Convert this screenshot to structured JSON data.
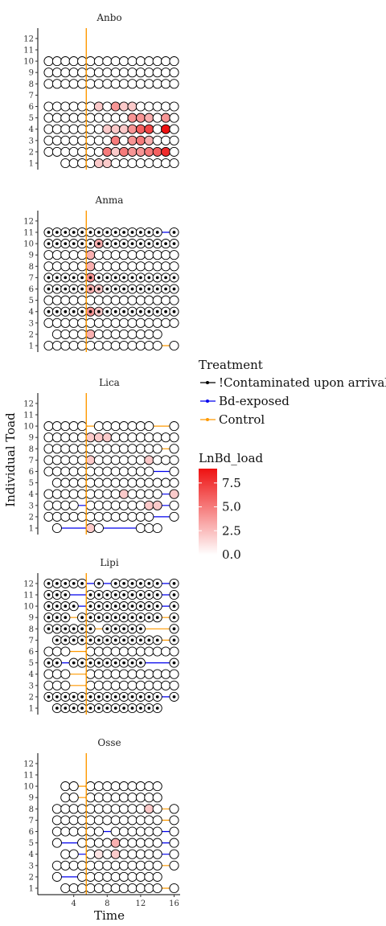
{
  "chart_data": {
    "type": "scatter",
    "xlabel": "Time",
    "ylabel": "Individual Toad",
    "x_ticks": [
      4,
      8,
      12,
      16
    ],
    "y_ticks": [
      1,
      2,
      3,
      4,
      5,
      6,
      7,
      8,
      9,
      10,
      11,
      12
    ],
    "xlim": [
      0,
      17
    ],
    "ylim": [
      0.5,
      12.5
    ],
    "vline_x": 5.5,
    "colors": {
      "contaminated": "#000000",
      "bd": "#0000ee",
      "control": "#ff9900",
      "vline": "#ff9900",
      "load_low": "#ffffff",
      "load_high": "#ee1111"
    },
    "legend": {
      "treatment_title": "Treatment",
      "treatment_items": [
        {
          "label": "!Contaminated upon arrival",
          "color": "#000000"
        },
        {
          "label": "Bd-exposed",
          "color": "#0000ee"
        },
        {
          "label": "Control",
          "color": "#ff9900"
        }
      ],
      "load_title": "LnBd_load",
      "load_ticks": [
        "7.5",
        "5.0",
        "2.5",
        "0.0"
      ],
      "load_range": [
        0,
        9
      ]
    },
    "panels": [
      {
        "title": "Anbo",
        "rows": [
          {
            "y": 1,
            "t": "bd",
            "start": 3,
            "end": 16,
            "missing": [],
            "dot": false,
            "loads": {
              "7": 2,
              "8": 2
            }
          },
          {
            "y": 2,
            "t": "bd",
            "start": 1,
            "end": 16,
            "missing": [],
            "dot": false,
            "loads": {
              "8": 5,
              "9": 2,
              "10": 5,
              "11": 4,
              "12": 4,
              "13": 5,
              "14": 6,
              "15": 8
            }
          },
          {
            "y": 3,
            "t": "bd",
            "start": 1,
            "end": 16,
            "missing": [],
            "dot": false,
            "loads": {
              "9": 5,
              "11": 4,
              "12": 5,
              "13": 3
            }
          },
          {
            "y": 4,
            "t": "bd",
            "start": 1,
            "end": 16,
            "missing": [],
            "dot": false,
            "loads": {
              "8": 2,
              "9": 2,
              "10": 2,
              "11": 4,
              "12": 6,
              "13": 7,
              "15": 9
            }
          },
          {
            "y": 5,
            "t": "bd",
            "start": 1,
            "end": 16,
            "missing": [],
            "dot": false,
            "loads": {
              "11": 4,
              "12": 4,
              "13": 3,
              "15": 4
            }
          },
          {
            "y": 6,
            "t": "bd",
            "start": 1,
            "end": 16,
            "missing": [],
            "dot": false,
            "loads": {
              "7": 2,
              "9": 4,
              "10": 2,
              "11": 2
            }
          },
          {
            "y": 8,
            "t": "control",
            "start": 1,
            "end": 16,
            "missing": [],
            "dot": false,
            "loads": {}
          },
          {
            "y": 9,
            "t": "control",
            "start": 1,
            "end": 16,
            "missing": [],
            "dot": false,
            "loads": {}
          },
          {
            "y": 10,
            "t": "control",
            "start": 1,
            "end": 16,
            "missing": [],
            "dot": false,
            "loads": {}
          }
        ]
      },
      {
        "title": "Anma",
        "rows": [
          {
            "y": 1,
            "t": "control",
            "start": 1,
            "end": 16,
            "missing": [
              15
            ],
            "dot": false,
            "loads": {}
          },
          {
            "y": 2,
            "t": "bd",
            "start": 2,
            "end": 14,
            "missing": [],
            "dot": false,
            "loads": {
              "6": 3
            }
          },
          {
            "y": 3,
            "t": "control",
            "start": 1,
            "end": 16,
            "missing": [],
            "dot": false,
            "loads": {}
          },
          {
            "y": 4,
            "t": "bd",
            "start": 1,
            "end": 16,
            "missing": [],
            "dot": true,
            "loads": {
              "6": 4,
              "7": 2
            }
          },
          {
            "y": 5,
            "t": "control",
            "start": 1,
            "end": 16,
            "missing": [],
            "dot": false,
            "loads": {}
          },
          {
            "y": 6,
            "t": "bd",
            "start": 1,
            "end": 16,
            "missing": [],
            "dot": true,
            "loads": {
              "6": 3,
              "7": 2
            }
          },
          {
            "y": 7,
            "t": "bd",
            "start": 1,
            "end": 16,
            "missing": [],
            "dot": true,
            "loads": {
              "6": 4
            }
          },
          {
            "y": 8,
            "t": "bd",
            "start": 1,
            "end": 16,
            "missing": [],
            "dot": false,
            "loads": {
              "6": 3
            }
          },
          {
            "y": 9,
            "t": "bd",
            "start": 1,
            "end": 16,
            "missing": [],
            "dot": false,
            "loads": {
              "6": 3
            }
          },
          {
            "y": 10,
            "t": "bd",
            "start": 1,
            "end": 16,
            "missing": [],
            "dot": true,
            "loads": {
              "7": 3
            }
          },
          {
            "y": 11,
            "t": "bd",
            "start": 1,
            "end": 16,
            "missing": [
              15
            ],
            "dot": true,
            "loads": {}
          }
        ]
      },
      {
        "title": "Lica",
        "rows": [
          {
            "y": 1,
            "t": "bd",
            "start": 2,
            "end": 14,
            "missing": [
              3,
              4,
              5,
              8,
              9,
              10,
              11
            ],
            "dot": false,
            "loads": {
              "6": 2
            }
          },
          {
            "y": 2,
            "t": "bd",
            "start": 1,
            "end": 16,
            "missing": [
              14,
              15
            ],
            "dot": false,
            "loads": {}
          },
          {
            "y": 3,
            "t": "bd",
            "start": 1,
            "end": 16,
            "missing": [
              5,
              15
            ],
            "dot": false,
            "loads": {
              "13": 2,
              "14": 2
            }
          },
          {
            "y": 4,
            "t": "bd",
            "start": 1,
            "end": 16,
            "missing": [
              15
            ],
            "dot": false,
            "loads": {
              "10": 2,
              "16": 2
            }
          },
          {
            "y": 5,
            "t": "control",
            "start": 2,
            "end": 16,
            "missing": [],
            "dot": false,
            "loads": {}
          },
          {
            "y": 6,
            "t": "bd",
            "start": 1,
            "end": 16,
            "missing": [
              14,
              15
            ],
            "dot": false,
            "loads": {}
          },
          {
            "y": 7,
            "t": "control",
            "start": 1,
            "end": 16,
            "missing": [],
            "dot": false,
            "loads": {
              "6": 2,
              "13": 2
            }
          },
          {
            "y": 8,
            "t": "control",
            "start": 1,
            "end": 16,
            "missing": [
              15
            ],
            "dot": false,
            "loads": {}
          },
          {
            "y": 9,
            "t": "control",
            "start": 1,
            "end": 16,
            "missing": [],
            "dot": false,
            "loads": {
              "6": 2,
              "7": 2,
              "8": 2
            }
          },
          {
            "y": 10,
            "t": "control",
            "start": 1,
            "end": 16,
            "missing": [
              6,
              14,
              15
            ],
            "dot": false,
            "loads": {}
          }
        ]
      },
      {
        "title": "Lipi",
        "rows": [
          {
            "y": 1,
            "t": "bd",
            "start": 2,
            "end": 14,
            "missing": [],
            "dot": true,
            "loads": {}
          },
          {
            "y": 2,
            "t": "bd",
            "start": 1,
            "end": 16,
            "missing": [
              15
            ],
            "dot": true,
            "loads": {}
          },
          {
            "y": 3,
            "t": "control",
            "start": 1,
            "end": 16,
            "missing": [
              4,
              5
            ],
            "dot": false,
            "loads": {}
          },
          {
            "y": 4,
            "t": "control",
            "start": 1,
            "end": 16,
            "missing": [
              4,
              5
            ],
            "dot": false,
            "loads": {}
          },
          {
            "y": 5,
            "t": "bd",
            "start": 1,
            "end": 16,
            "missing": [
              3,
              13,
              14,
              15
            ],
            "dot": true,
            "loads": {}
          },
          {
            "y": 6,
            "t": "control",
            "start": 1,
            "end": 16,
            "missing": [
              4,
              5
            ],
            "dot": false,
            "loads": {}
          },
          {
            "y": 7,
            "t": "control",
            "start": 2,
            "end": 16,
            "missing": [
              15
            ],
            "dot": true,
            "loads": {}
          },
          {
            "y": 8,
            "t": "control",
            "start": 1,
            "end": 16,
            "missing": [
              7,
              13,
              14,
              15
            ],
            "dot": true,
            "loads": {}
          },
          {
            "y": 9,
            "t": "control",
            "start": 1,
            "end": 16,
            "missing": [
              4,
              15
            ],
            "dot": true,
            "loads": {}
          },
          {
            "y": 10,
            "t": "bd",
            "start": 1,
            "end": 16,
            "missing": [
              5,
              15
            ],
            "dot": true,
            "loads": {}
          },
          {
            "y": 11,
            "t": "bd",
            "start": 1,
            "end": 16,
            "missing": [
              4,
              5,
              15
            ],
            "dot": true,
            "loads": {}
          },
          {
            "y": 12,
            "t": "bd",
            "start": 1,
            "end": 16,
            "missing": [
              6,
              8,
              15
            ],
            "dot": true,
            "loads": {}
          }
        ]
      },
      {
        "title": "Osse",
        "rows": [
          {
            "y": 1,
            "t": "control",
            "start": 3,
            "end": 16,
            "missing": [
              15
            ],
            "dot": false,
            "loads": {}
          },
          {
            "y": 2,
            "t": "bd",
            "start": 2,
            "end": 14,
            "missing": [
              3,
              4
            ],
            "dot": false,
            "loads": {}
          },
          {
            "y": 3,
            "t": "control",
            "start": 2,
            "end": 16,
            "missing": [
              15
            ],
            "dot": false,
            "loads": {}
          },
          {
            "y": 4,
            "t": "bd",
            "start": 3,
            "end": 16,
            "missing": [
              5,
              15
            ],
            "dot": false,
            "loads": {
              "7": 1,
              "9": 2
            }
          },
          {
            "y": 5,
            "t": "bd",
            "start": 2,
            "end": 16,
            "missing": [
              3,
              4,
              15
            ],
            "dot": false,
            "loads": {
              "9": 3
            }
          },
          {
            "y": 6,
            "t": "bd",
            "start": 2,
            "end": 16,
            "missing": [
              8,
              15
            ],
            "dot": false,
            "loads": {}
          },
          {
            "y": 7,
            "t": "control",
            "start": 2,
            "end": 16,
            "missing": [
              15
            ],
            "dot": false,
            "loads": {}
          },
          {
            "y": 8,
            "t": "control",
            "start": 2,
            "end": 16,
            "missing": [
              15
            ],
            "dot": false,
            "loads": {
              "13": 2
            }
          },
          {
            "y": 9,
            "t": "control",
            "start": 3,
            "end": 14,
            "missing": [
              5
            ],
            "dot": false,
            "loads": {}
          },
          {
            "y": 10,
            "t": "control",
            "start": 3,
            "end": 14,
            "missing": [
              5
            ],
            "dot": false,
            "loads": {}
          }
        ]
      }
    ]
  }
}
